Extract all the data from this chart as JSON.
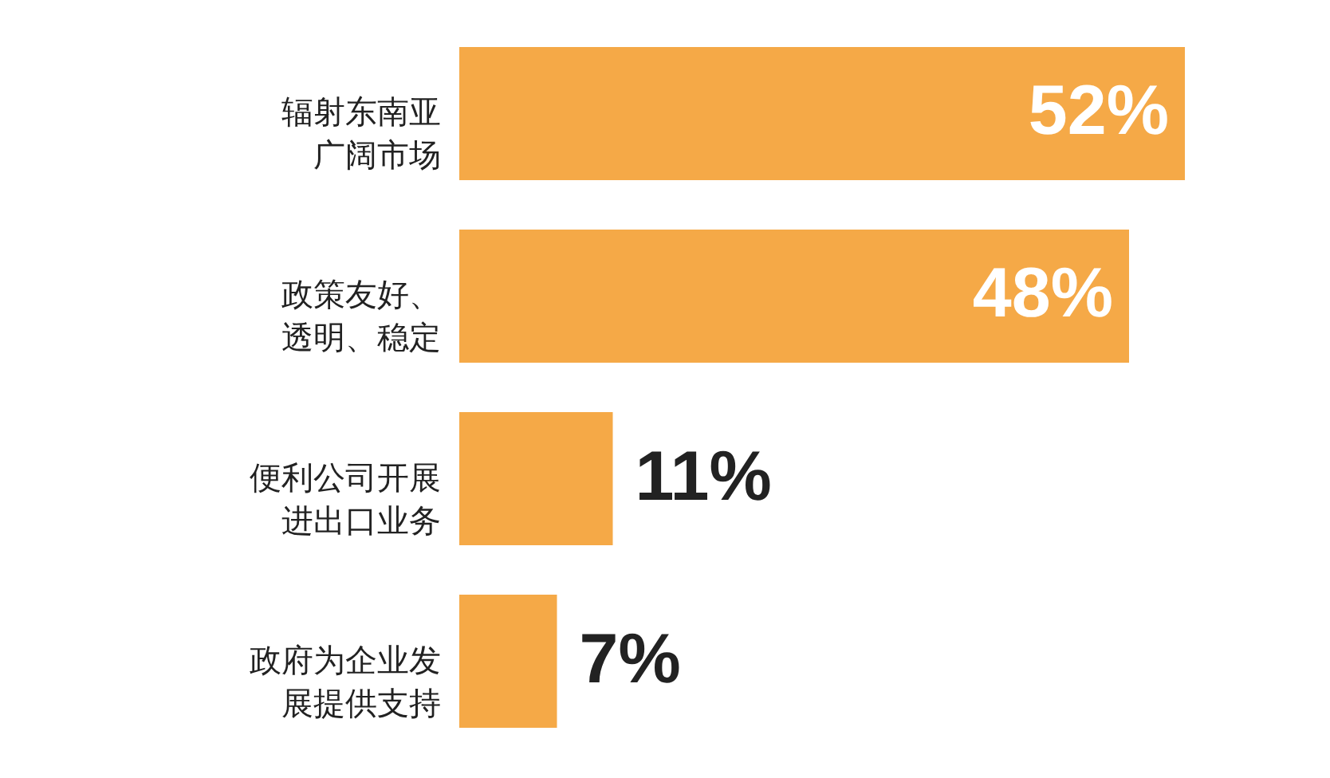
{
  "chart_data": {
    "type": "bar",
    "orientation": "horizontal",
    "categories": [
      "辐射东南亚广阔市场",
      "政策友好、透明、稳定",
      "便利公司开展进出口业务",
      "政府为企业发展提供支持"
    ],
    "values": [
      52,
      48,
      11,
      7
    ],
    "value_labels": [
      "52%",
      "48%",
      "11%",
      "7%"
    ],
    "color": "#f5a947"
  }
}
